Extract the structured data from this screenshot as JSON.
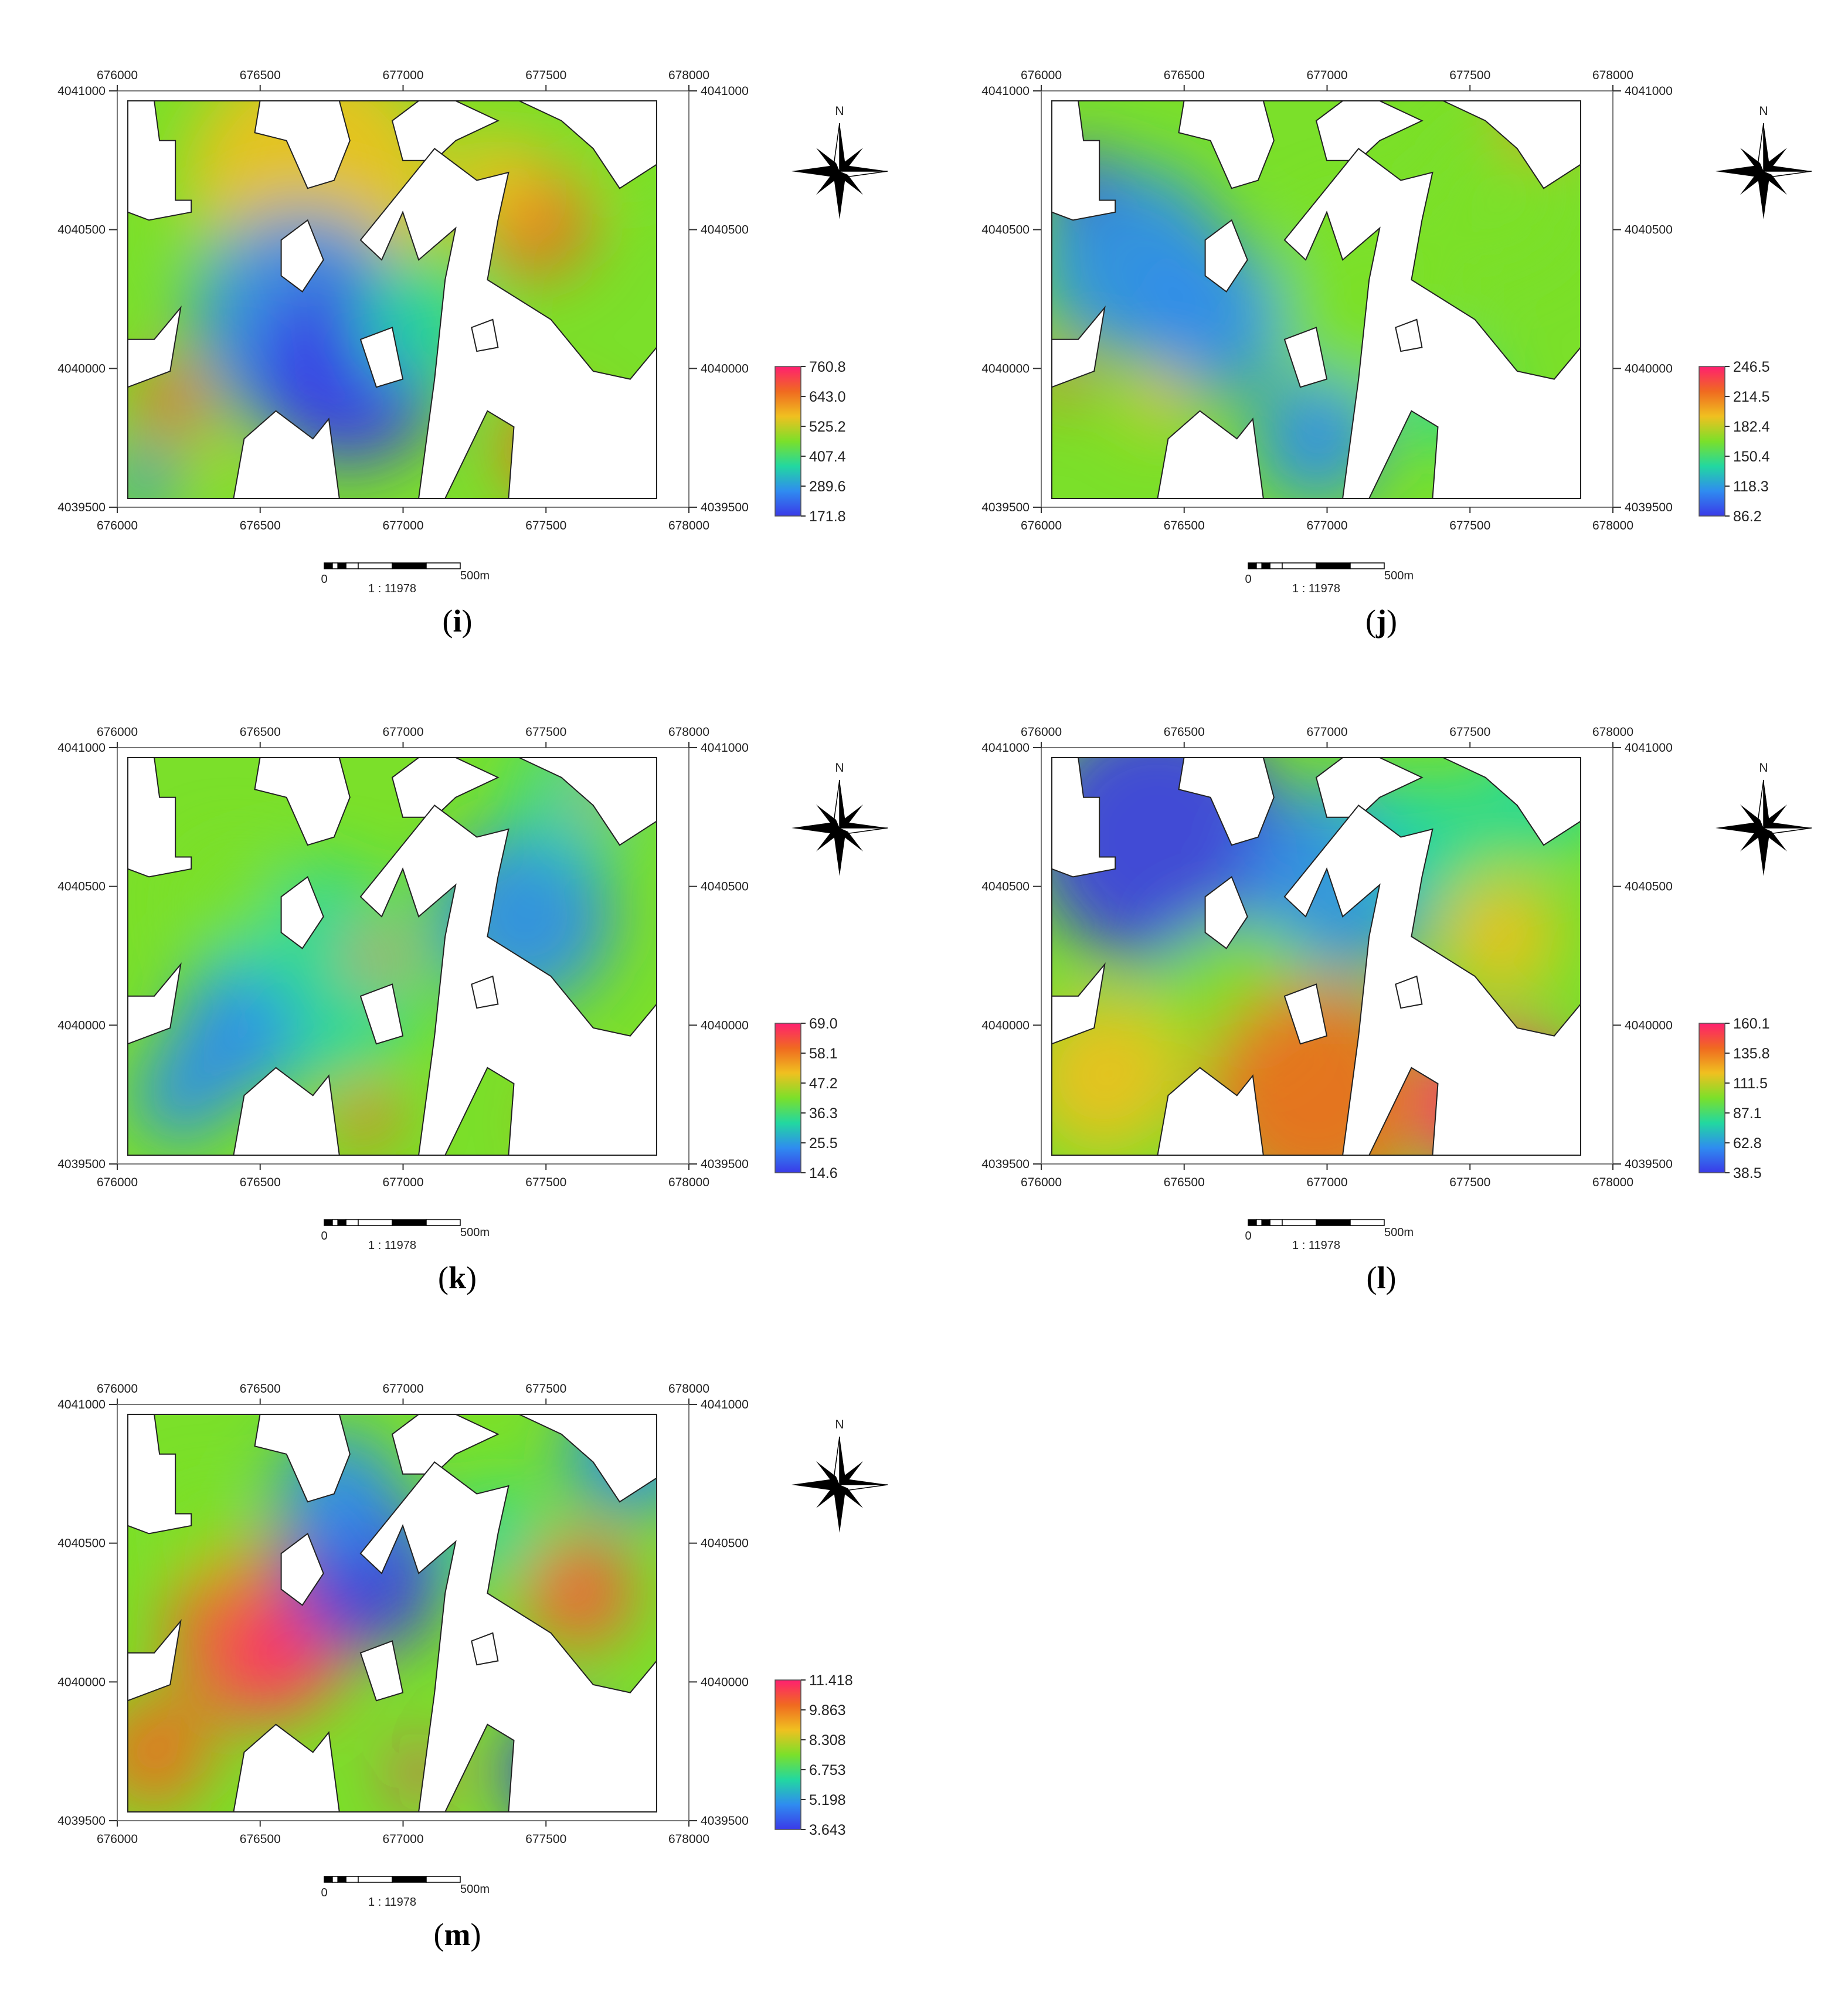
{
  "figure": {
    "x_ticks": [
      "676000",
      "676500",
      "677000",
      "677500",
      "678000"
    ],
    "y_ticks": [
      "4041000",
      "4040500",
      "4040000",
      "4039500"
    ],
    "north_label": "N",
    "scale_zero": "0",
    "scale_end": "500m",
    "scale_ratio": "1 : 11978",
    "colors": {
      "ramp": [
        "#3a3ae8",
        "#2f8cf0",
        "#22d8a0",
        "#7be02a",
        "#f0c020",
        "#f06a20",
        "#ff2070"
      ],
      "nodata": "#ffffff"
    }
  },
  "panels": [
    {
      "id": "i",
      "caption_letter": "i",
      "legend": [
        "760.8",
        "643.0",
        "525.2",
        "407.4",
        "289.6",
        "171.8"
      ]
    },
    {
      "id": "j",
      "caption_letter": "j",
      "legend": [
        "246.5",
        "214.5",
        "182.4",
        "150.4",
        "118.3",
        "86.2"
      ]
    },
    {
      "id": "k",
      "caption_letter": "k",
      "legend": [
        "69.0",
        "58.1",
        "47.2",
        "36.3",
        "25.5",
        "14.6"
      ]
    },
    {
      "id": "l",
      "caption_letter": "l",
      "legend": [
        "160.1",
        "135.8",
        "111.5",
        "87.1",
        "62.8",
        "38.5"
      ]
    },
    {
      "id": "m",
      "caption_letter": "m",
      "legend": [
        "11.418",
        "9.863",
        "8.308",
        "6.753",
        "5.198",
        "3.643"
      ]
    }
  ]
}
